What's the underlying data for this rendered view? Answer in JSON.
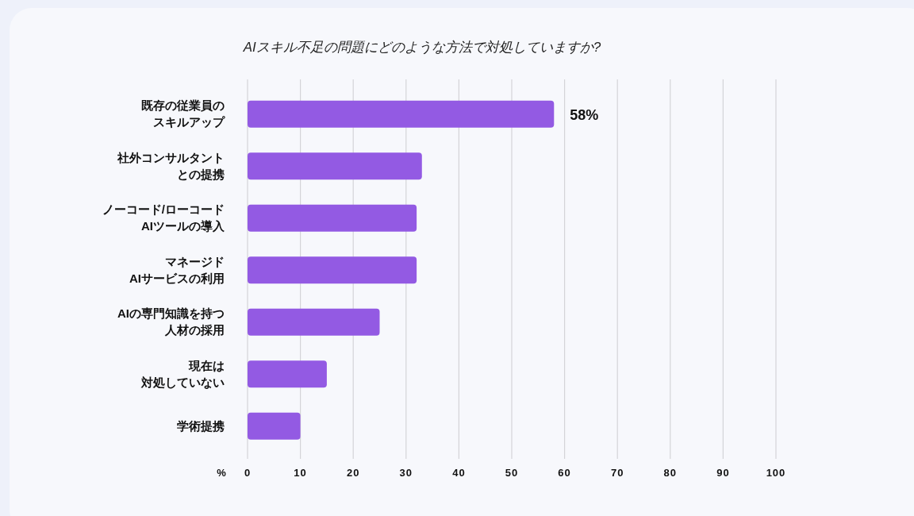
{
  "chart_data": {
    "type": "bar",
    "orientation": "horizontal",
    "title": "AIスキル不足の問題にどのような方法で対処していますか?",
    "categories": [
      "既存の従業員のスキルアップ",
      "社外コンサルタントとの提携",
      "ノーコード/ローコードAIツールの導入",
      "マネージドAIサービスの利用",
      "AIの専門知識を持つ人材の採用",
      "現在は対処していない",
      "学術提携"
    ],
    "values": [
      58,
      33,
      32,
      32,
      25,
      15,
      10
    ],
    "value_labels": [
      "58%",
      null,
      null,
      null,
      null,
      null,
      null
    ],
    "color": "#935ae3",
    "xlabel": "%",
    "xlim": [
      0,
      100
    ],
    "xticks": [
      0,
      10,
      20,
      30,
      40,
      50,
      60,
      70,
      80,
      90,
      100
    ],
    "grid": "x"
  }
}
